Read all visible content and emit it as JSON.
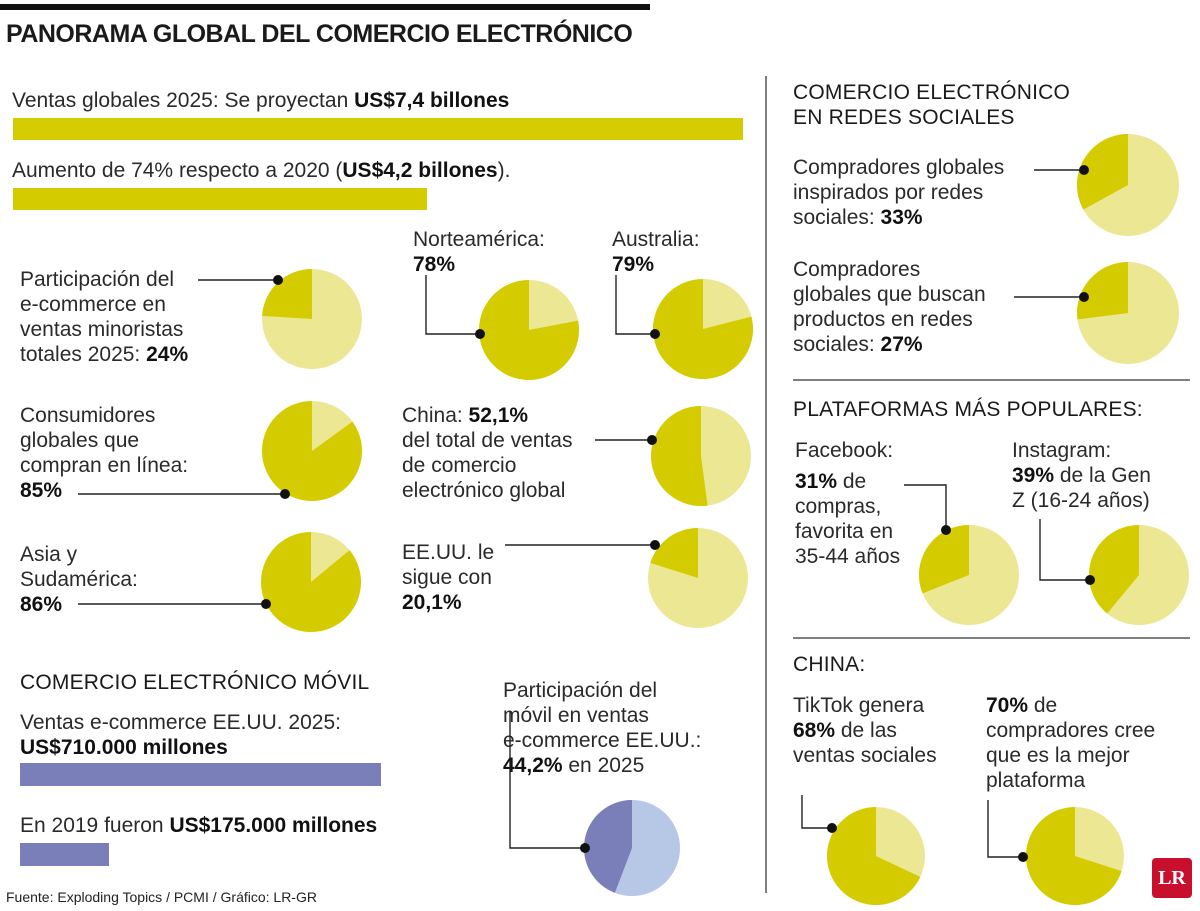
{
  "title": "PANORAMA GLOBAL DEL COMERCIO ELECTRÓNICO",
  "colors": {
    "yellow_dark": "#d4cc00",
    "yellow_light": "#ece793",
    "purple": "#7a7fba",
    "blue_light": "#b7c8e6",
    "divider": "#555555"
  },
  "sales": {
    "global_2025_pre": "Ventas globales 2025: Se proyectan ",
    "global_2025_bold": "US$7,4 billones",
    "increase_pre": "Aumento de 74% respecto a 2020 (",
    "increase_bold": "US$4,2 billones",
    "increase_post": ")."
  },
  "pies": {
    "participacion": {
      "l1": "Participación del",
      "l2": "e-commerce en",
      "l3": "ventas minoristas",
      "l4": "totales 2025: ",
      "value": "24%"
    },
    "consumidores": {
      "l1": "Consumidores",
      "l2": "globales que",
      "l3": "compran en línea:",
      "value": "85%"
    },
    "asia": {
      "l1": "Asia y",
      "l2": "Sudamérica:",
      "value": "86%"
    },
    "norteamerica": {
      "l1": "Norteamérica:",
      "value": "78%"
    },
    "australia": {
      "l1": "Australia:",
      "value": "79%"
    },
    "china": {
      "pre": "China: ",
      "value": "52,1%",
      "l2": "del total de ventas",
      "l3": "de comercio",
      "l4": "electrónico global"
    },
    "eeuu": {
      "l1": "EE.UU. le",
      "l2": "sigue con",
      "value": "20,1%"
    }
  },
  "mobile": {
    "heading": "COMERCIO ELECTRÓNICO MÓVIL",
    "sales_label": "Ventas e-commerce EE.UU. 2025:",
    "sales_value": "US$710.000 millones",
    "y2019_pre": "En 2019 fueron ",
    "y2019_bold": "US$175.000 millones",
    "share_l1": "Participación del",
    "share_l2": "móvil en ventas",
    "share_l3": "e-commerce EE.UU.:",
    "share_value": "44,2%",
    "share_post": " en 2025"
  },
  "social": {
    "heading_l1": "COMERCIO ELECTRÓNICO",
    "heading_l2": "EN REDES SOCIALES",
    "inspired_l1": "Compradores globales",
    "inspired_l2": "inspirados por redes",
    "inspired_l3": "sociales: ",
    "inspired_value": "33%",
    "search_l1": "Compradores",
    "search_l2": "globales que buscan",
    "search_l3": "productos en redes",
    "search_l4": "sociales: ",
    "search_value": "27%"
  },
  "platforms": {
    "heading": "PLATAFORMAS MÁS POPULARES:",
    "facebook_l1": "Facebook:",
    "facebook_value": "31%",
    "facebook_l2": " de",
    "facebook_l3": "compras,",
    "facebook_l4": "favorita en",
    "facebook_l5": "35-44 años",
    "instagram_l1": "Instagram:",
    "instagram_value": "39%",
    "instagram_l2": " de la Gen",
    "instagram_l3": "Z (16-24 años)"
  },
  "china_section": {
    "heading": "CHINA:",
    "tiktok_l1": "TikTok genera",
    "tiktok_value": "68%",
    "tiktok_l2": " de las",
    "tiktok_l3": "ventas sociales",
    "best_value": "70%",
    "best_l1": " de",
    "best_l2": "compradores cree",
    "best_l3": "que es la mejor",
    "best_l4": "plataforma"
  },
  "source": "Fuente: Exploding Topics / PCMI / Gráfico: LR-GR",
  "logo_text": "LR",
  "chart_data": [
    {
      "type": "bar",
      "name": "Ventas globales de comercio electrónico",
      "unit": "billones US$",
      "categories": [
        "2025",
        "2020"
      ],
      "values": [
        7.4,
        4.2
      ],
      "color": "#d4cc00"
    },
    {
      "type": "bar",
      "name": "Ventas e-commerce EE.UU.",
      "unit": "millones US$",
      "categories": [
        "2025",
        "2019"
      ],
      "values": [
        710000,
        175000
      ],
      "color": "#7a7fba"
    },
    {
      "type": "pie",
      "key": "participacion",
      "value": 24
    },
    {
      "type": "pie",
      "key": "consumidores",
      "value": 85
    },
    {
      "type": "pie",
      "key": "asia",
      "value": 86
    },
    {
      "type": "pie",
      "key": "norteamerica",
      "value": 78
    },
    {
      "type": "pie",
      "key": "australia",
      "value": 79
    },
    {
      "type": "pie",
      "key": "china",
      "value": 52.1
    },
    {
      "type": "pie",
      "key": "eeuu",
      "value": 20.1
    },
    {
      "type": "pie",
      "key": "movil",
      "value": 44.2
    },
    {
      "type": "pie",
      "key": "inspirados",
      "value": 33
    },
    {
      "type": "pie",
      "key": "buscan",
      "value": 27
    },
    {
      "type": "pie",
      "key": "facebook",
      "value": 31
    },
    {
      "type": "pie",
      "key": "instagram",
      "value": 39
    },
    {
      "type": "pie",
      "key": "tiktok",
      "value": 68
    },
    {
      "type": "pie",
      "key": "mejor_plataforma",
      "value": 70
    }
  ]
}
